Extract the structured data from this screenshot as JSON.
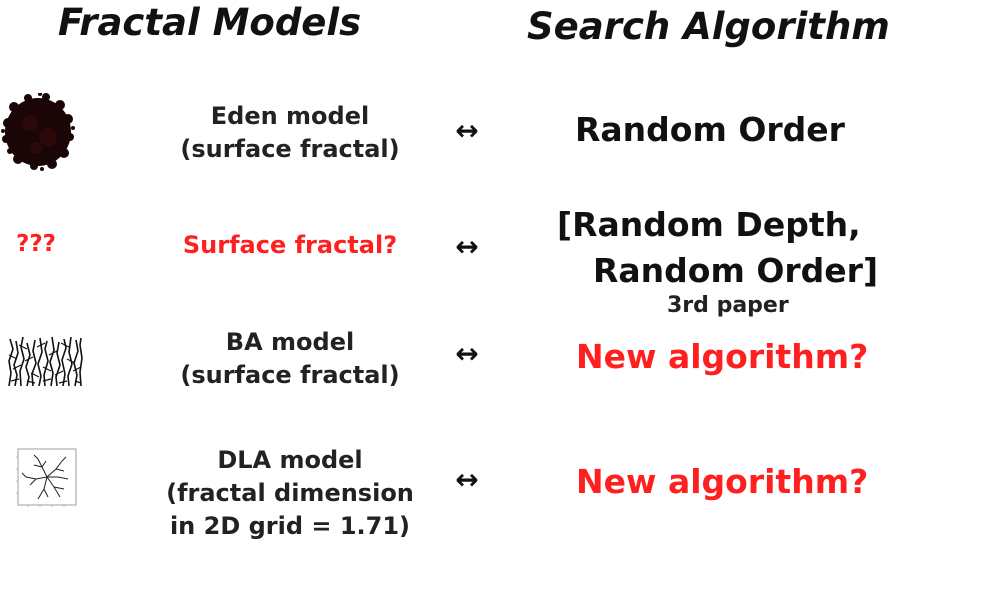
{
  "headings": {
    "left": "Fractal Models",
    "right": "Search Algorithm"
  },
  "rows": [
    {
      "thumbnail": "eden-cluster-icon",
      "model_lines": [
        "Eden model",
        "(surface fractal)"
      ],
      "arrow": "↔",
      "algorithm": "Random Order"
    },
    {
      "thumbnail_text": "???",
      "model_lines": [
        "Surface fractal?"
      ],
      "arrow": "↔",
      "algorithm_lines": [
        "[Random Depth,",
        "Random Order]"
      ],
      "note": "3rd paper"
    },
    {
      "thumbnail": "ba-deposition-icon",
      "model_lines": [
        "BA model",
        "(surface fractal)"
      ],
      "arrow": "↔",
      "algorithm": "New algorithm?"
    },
    {
      "thumbnail": "dla-plot-icon",
      "model_lines": [
        "DLA model",
        "(fractal dimension",
        "in 2D grid = 1.71)"
      ],
      "arrow": "↔",
      "algorithm": "New algorithm?"
    }
  ],
  "colors": {
    "highlight": "#ff1f1f",
    "text": "#222222"
  }
}
